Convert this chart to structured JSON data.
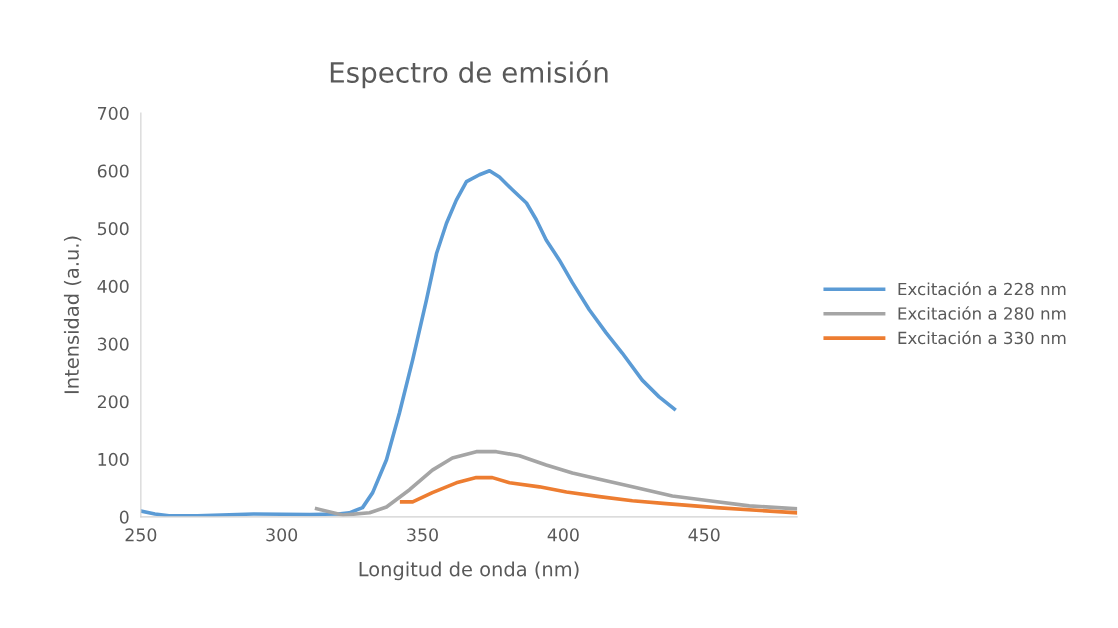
{
  "chart_data": {
    "type": "line",
    "title": "Espectro de emisión",
    "xlabel": "Longitud de onda (nm)",
    "ylabel": "Intensidad (a.u.)",
    "xlim": [
      250,
      483
    ],
    "xticks": [
      250,
      300,
      350,
      400,
      450
    ],
    "ylim": [
      0,
      700
    ],
    "yticks": [
      0,
      100,
      200,
      300,
      400,
      500,
      600,
      700
    ],
    "grid": false,
    "legend": "right",
    "marker": "none",
    "line_style": "solid",
    "series": [
      {
        "name": "Excitación a 228 nm",
        "color": "#5b9bd5",
        "x": [
          250,
          255,
          260,
          270,
          290,
          310,
          320,
          324,
          328.7,
          332.3,
          337.2,
          341.8,
          346.5,
          351.4,
          355,
          358.5,
          362,
          365.6,
          370.2,
          373.8,
          377.3,
          381.9,
          386.9,
          390.4,
          393.9,
          398.6,
          403.2,
          409.2,
          415.2,
          420.9,
          428,
          434,
          439.4
        ],
        "values": [
          10,
          5,
          2,
          2,
          5,
          4,
          5,
          7,
          16,
          42,
          99,
          180,
          272,
          376,
          457,
          509,
          549,
          581,
          593,
          600,
          589,
          567,
          544,
          515,
          480,
          445,
          406,
          359,
          319,
          284,
          237,
          208,
          187
        ]
      },
      {
        "name": "Excitación a 280 nm",
        "color": "#a5a5a5",
        "x": [
          312.4,
          321.6,
          331.2,
          337.2,
          345.4,
          353.5,
          360.6,
          369.1,
          376.2,
          384.4,
          393.9,
          403.2,
          412.8,
          424.5,
          438.7,
          451.8,
          466,
          482.6
        ],
        "values": [
          14,
          3,
          7,
          17,
          47,
          81,
          102,
          113,
          113,
          106,
          90,
          76,
          65,
          52,
          36,
          28,
          19,
          14
        ]
      },
      {
        "name": "Excitación a 330 nm",
        "color": "#ed7d31",
        "x": [
          342.6,
          346.5,
          353.5,
          362,
          369.1,
          374.8,
          380.9,
          391.5,
          401.1,
          412.8,
          424.5,
          436.5,
          454.3,
          482.6
        ],
        "values": [
          26,
          26,
          42,
          59,
          68,
          68,
          59,
          52,
          43,
          35,
          28,
          23,
          16,
          7
        ]
      }
    ]
  }
}
